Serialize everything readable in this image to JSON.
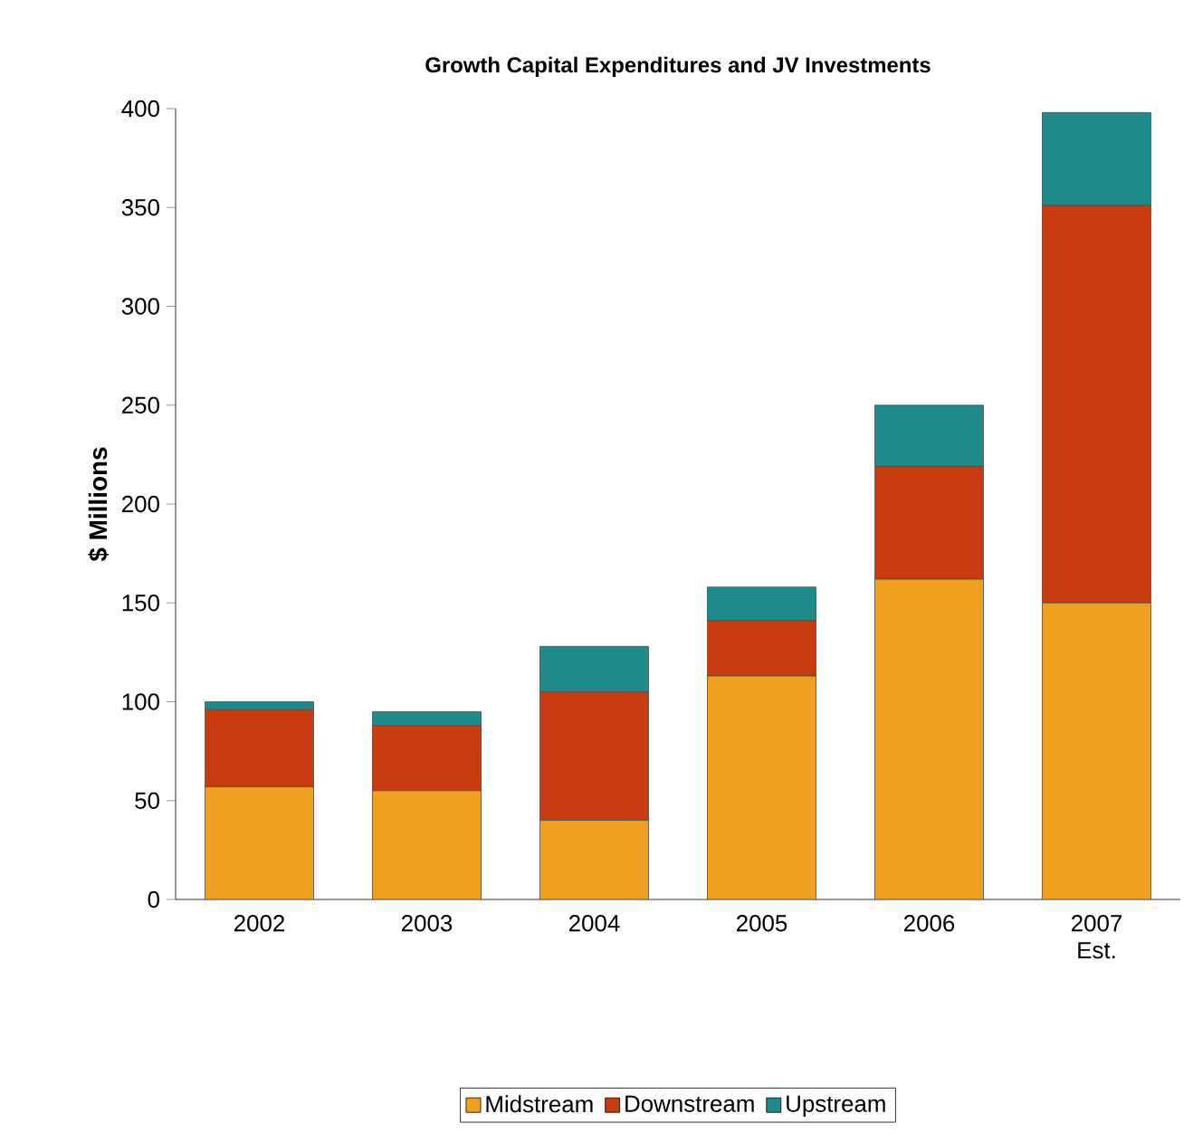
{
  "chart_data": {
    "type": "bar",
    "title": "Growth Capital Expenditures and JV Investments",
    "ylabel": "$ Millions",
    "stacked": true,
    "legend": "bottom",
    "categories": [
      "2002",
      "2003",
      "2004",
      "2005",
      "2006",
      "2007 Est."
    ],
    "series": [
      {
        "name": "Midstream",
        "color": "#f0a020",
        "values": [
          57,
          55,
          40,
          113,
          162,
          150
        ]
      },
      {
        "name": "Downstream",
        "color": "#c83a10",
        "values": [
          39,
          33,
          65,
          28,
          57,
          201
        ]
      },
      {
        "name": "Upstream",
        "color": "#1e8a8a",
        "values": [
          4,
          7,
          23,
          17,
          31,
          47
        ]
      }
    ],
    "ylim": [
      0,
      400
    ],
    "yticks": [
      0,
      50,
      100,
      150,
      200,
      250,
      300,
      350,
      400
    ]
  }
}
